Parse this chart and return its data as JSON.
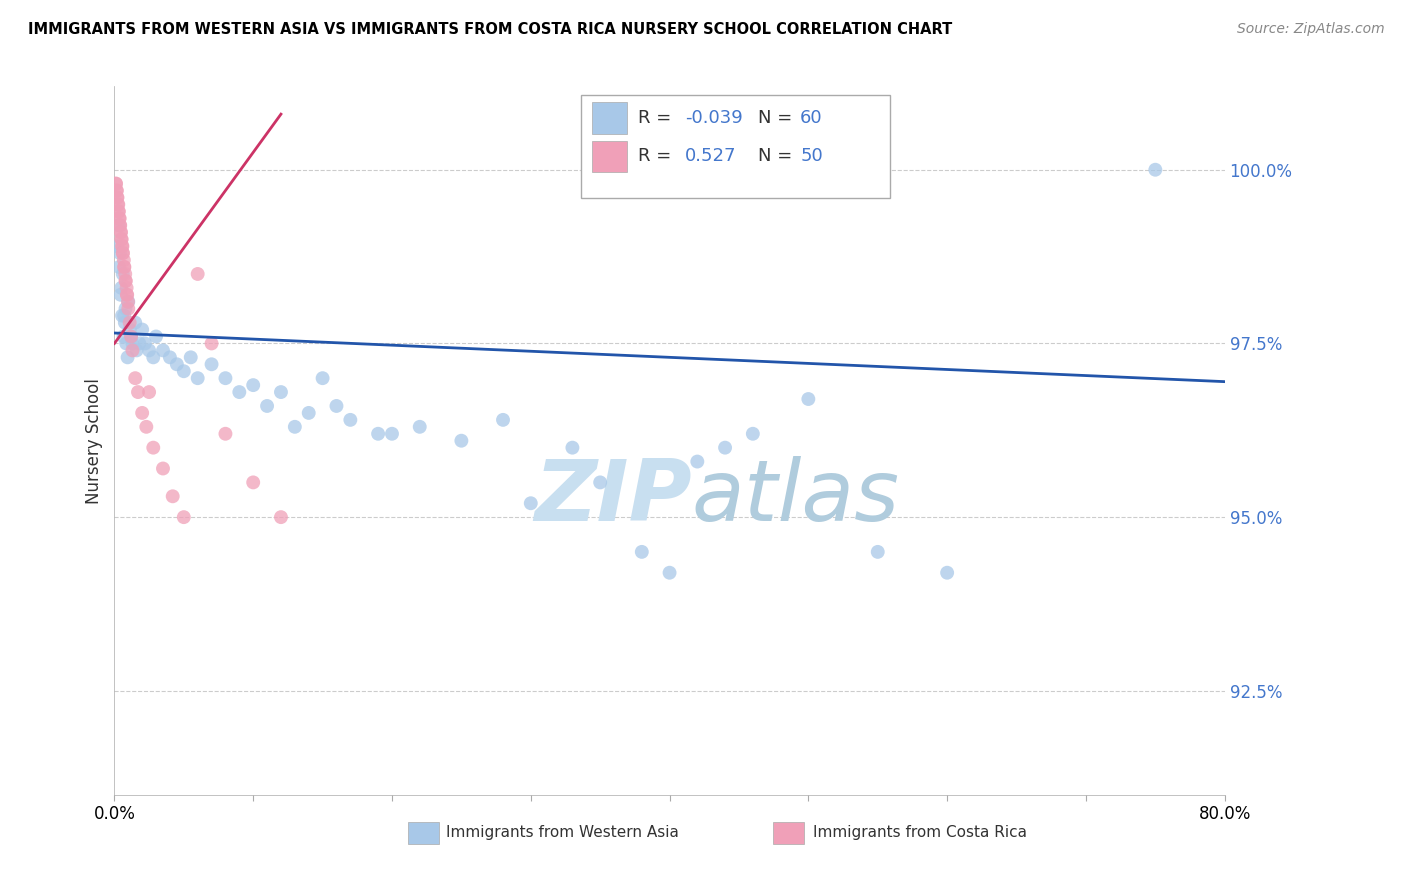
{
  "title": "IMMIGRANTS FROM WESTERN ASIA VS IMMIGRANTS FROM COSTA RICA NURSERY SCHOOL CORRELATION CHART",
  "source": "Source: ZipAtlas.com",
  "ylabel": "Nursery School",
  "xlim": [
    0.0,
    80.0
  ],
  "ylim": [
    91.0,
    101.2
  ],
  "yticks": [
    92.5,
    95.0,
    97.5,
    100.0
  ],
  "blue_color": "#A8C8E8",
  "pink_color": "#F0A0B8",
  "line_blue": "#2255AA",
  "line_pink": "#CC3366",
  "watermark_zip": "ZIP",
  "watermark_atlas": "atlas",
  "watermark_color": "#C8DFF0",
  "blue_x": [
    0.3,
    0.4,
    0.5,
    0.6,
    0.7,
    0.8,
    1.0,
    1.2,
    1.5,
    1.8,
    2.0,
    2.5,
    3.0,
    3.5,
    4.0,
    4.5,
    5.0,
    5.5,
    6.0,
    7.0,
    8.0,
    9.0,
    10.0,
    11.0,
    12.0,
    13.0,
    14.0,
    15.0,
    17.0,
    19.0,
    22.0,
    25.0,
    28.0,
    30.0,
    33.0,
    35.0,
    38.0,
    40.0,
    42.0,
    44.0,
    46.0,
    50.0,
    55.0,
    60.0,
    75.0,
    0.2,
    0.35,
    0.45,
    0.55,
    0.65,
    0.75,
    0.85,
    0.95,
    1.1,
    1.3,
    1.6,
    2.2,
    2.8,
    20.0,
    16.0
  ],
  "blue_y": [
    99.2,
    98.8,
    98.3,
    98.5,
    97.9,
    98.0,
    98.1,
    97.6,
    97.8,
    97.5,
    97.7,
    97.4,
    97.6,
    97.4,
    97.3,
    97.2,
    97.1,
    97.3,
    97.0,
    97.2,
    97.0,
    96.8,
    96.9,
    96.6,
    96.8,
    96.3,
    96.5,
    97.0,
    96.4,
    96.2,
    96.3,
    96.1,
    96.4,
    95.2,
    96.0,
    95.5,
    94.5,
    94.2,
    95.8,
    96.0,
    96.2,
    96.7,
    94.5,
    94.2,
    100.0,
    98.9,
    98.6,
    98.2,
    97.9,
    97.6,
    97.8,
    97.5,
    97.3,
    97.7,
    97.5,
    97.4,
    97.5,
    97.3,
    96.2,
    96.6
  ],
  "pink_x": [
    0.1,
    0.15,
    0.2,
    0.25,
    0.3,
    0.35,
    0.4,
    0.45,
    0.5,
    0.55,
    0.6,
    0.7,
    0.8,
    0.9,
    1.0,
    1.1,
    1.2,
    1.3,
    1.5,
    1.7,
    2.0,
    2.3,
    2.8,
    3.5,
    4.2,
    5.0,
    6.0,
    7.0,
    8.0,
    10.0,
    12.0,
    0.12,
    0.18,
    0.22,
    0.28,
    0.32,
    0.38,
    0.42,
    0.48,
    0.52,
    0.58,
    0.62,
    0.68,
    0.72,
    0.78,
    0.82,
    0.88,
    0.92,
    0.98,
    2.5
  ],
  "pink_y": [
    99.8,
    99.7,
    99.6,
    99.5,
    99.4,
    99.3,
    99.2,
    99.1,
    99.0,
    98.9,
    98.8,
    98.6,
    98.4,
    98.2,
    98.0,
    97.8,
    97.6,
    97.4,
    97.0,
    96.8,
    96.5,
    96.3,
    96.0,
    95.7,
    95.3,
    95.0,
    98.5,
    97.5,
    96.2,
    95.5,
    95.0,
    99.8,
    99.7,
    99.6,
    99.5,
    99.4,
    99.3,
    99.2,
    99.1,
    99.0,
    98.9,
    98.8,
    98.7,
    98.6,
    98.5,
    98.4,
    98.3,
    98.2,
    98.1,
    96.8
  ],
  "blue_line_x0": 0.0,
  "blue_line_x1": 80.0,
  "blue_line_y0": 97.65,
  "blue_line_y1": 96.95,
  "pink_line_x0": 0.0,
  "pink_line_x1": 12.0,
  "pink_line_y0": 97.5,
  "pink_line_y1": 100.8
}
